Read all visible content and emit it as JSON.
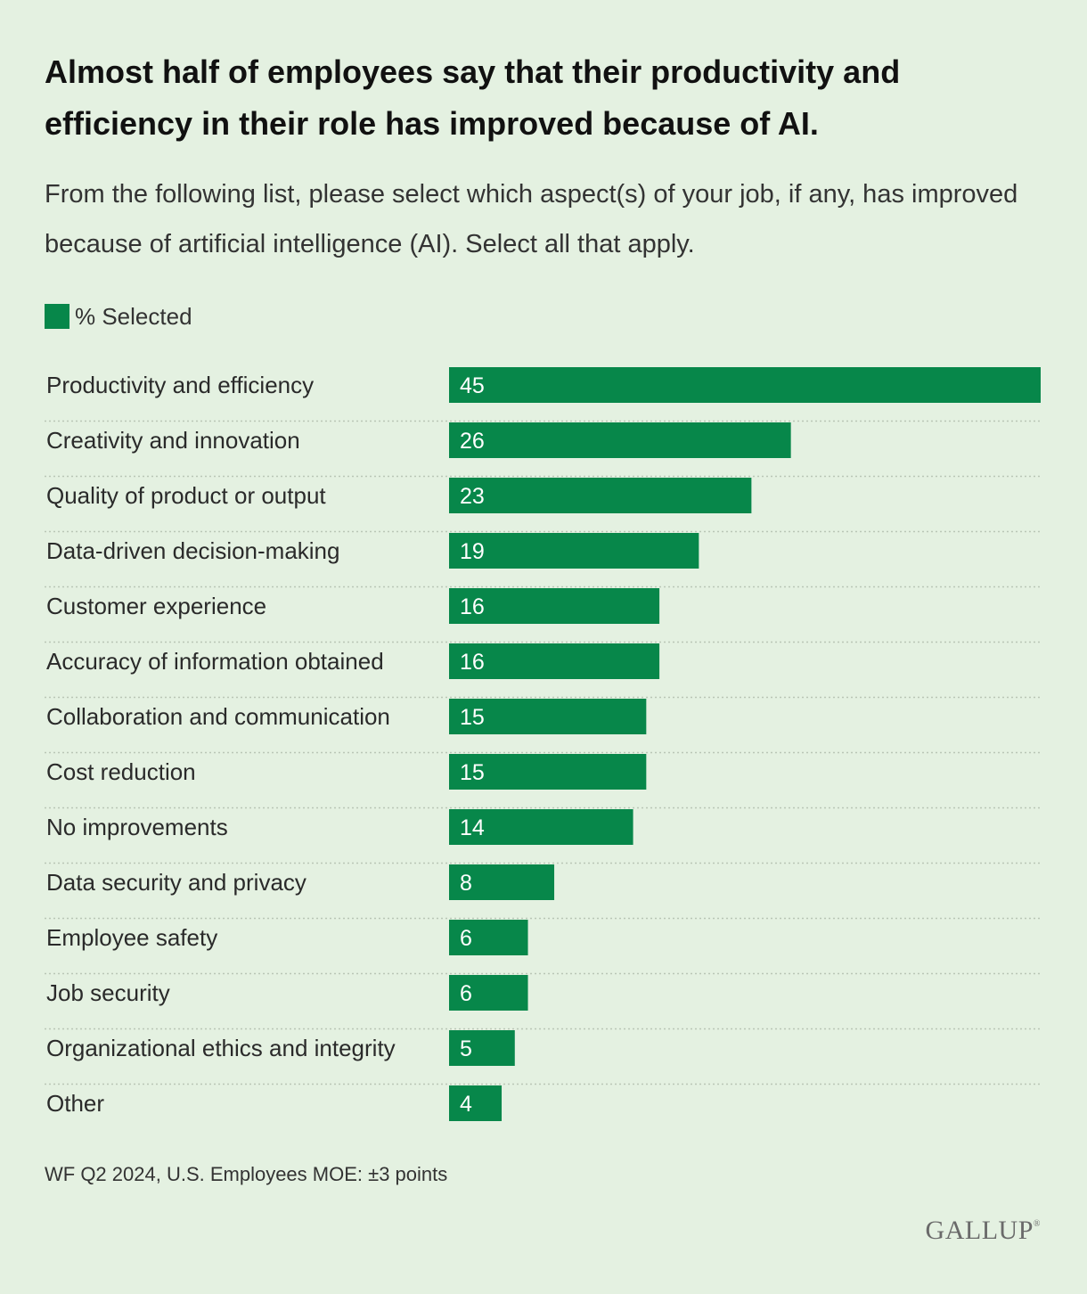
{
  "header": {
    "title": "Almost half of employees say that their productivity and efficiency in their role has improved because of AI.",
    "subtitle": "From the following list, please select which aspect(s) of your job, if any, has improved because of artificial intelligence (AI). Select all that apply."
  },
  "legend": {
    "label": "% Selected"
  },
  "colors": {
    "bar": "#07874a",
    "background": "#e4f1e1",
    "bar_label": "#ffffff",
    "divider": "#b9c6b6"
  },
  "chart_data": {
    "type": "bar",
    "orientation": "horizontal",
    "title": "Almost half of employees say that their productivity and efficiency in their role has improved because of AI.",
    "xlabel": "",
    "ylabel": "",
    "xlim": [
      0,
      45
    ],
    "grid": false,
    "legend": [
      "% Selected"
    ],
    "categories": [
      "Productivity and efficiency",
      "Creativity and innovation",
      "Quality of product or output",
      "Data-driven decision-making",
      "Customer experience",
      "Accuracy of information obtained",
      "Collaboration and communication",
      "Cost reduction",
      "No improvements",
      "Data security and privacy",
      "Employee safety",
      "Job security",
      "Organizational ethics and integrity",
      "Other"
    ],
    "series": [
      {
        "name": "% Selected",
        "values": [
          45,
          26,
          23,
          19,
          16,
          16,
          15,
          15,
          14,
          8,
          6,
          6,
          5,
          4
        ]
      }
    ]
  },
  "footer": {
    "note": "WF Q2 2024, U.S. Employees MOE: ±3 points",
    "logo": "GALLUP",
    "logo_mark": "®"
  }
}
